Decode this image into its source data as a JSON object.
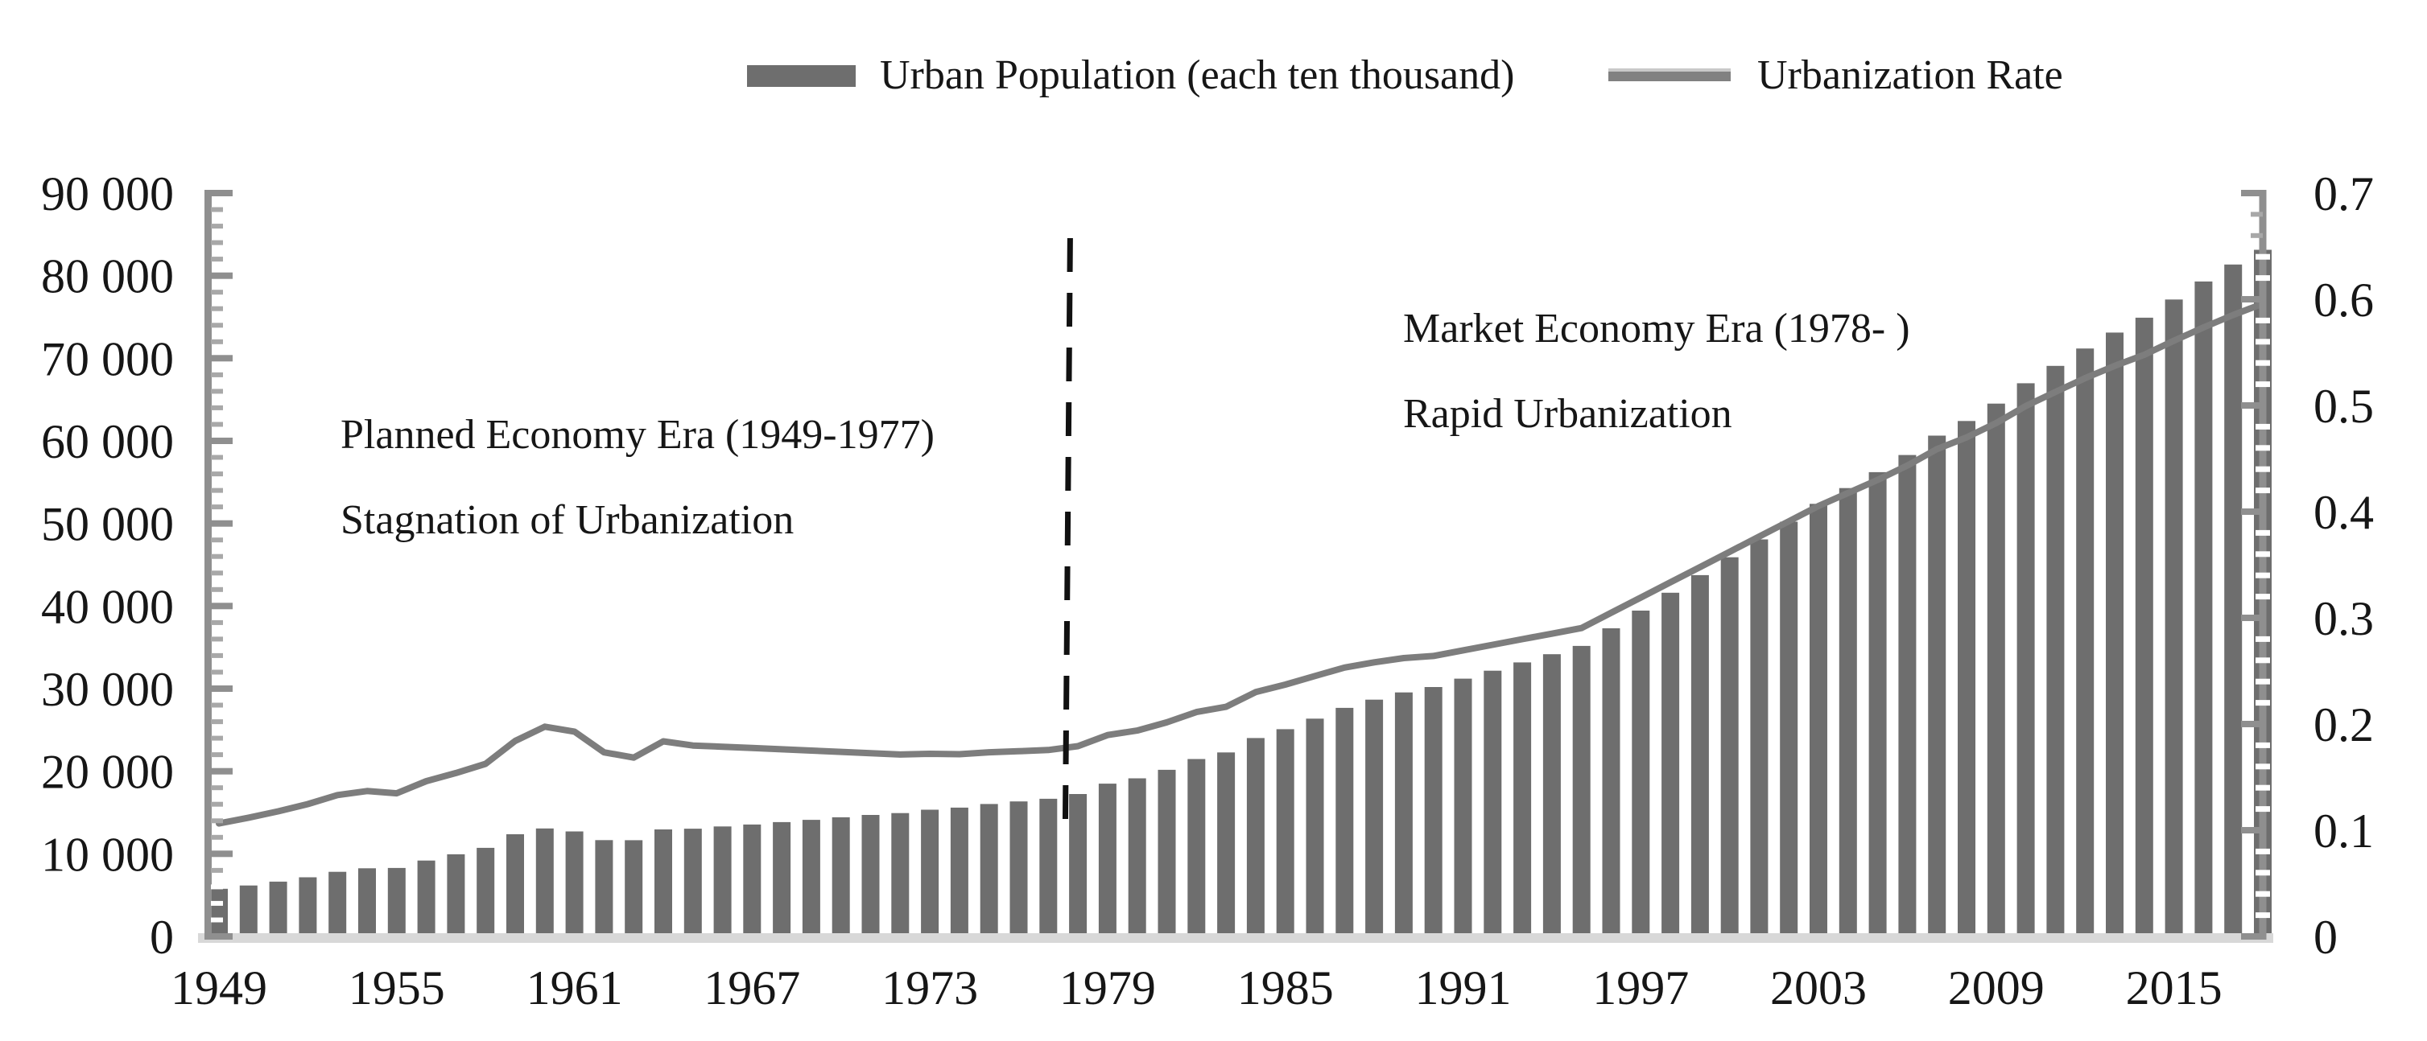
{
  "legend": {
    "bar_series_label": "Urban Population (each ten thousand)",
    "line_series_label": "Urbanization Rate"
  },
  "annotations": {
    "planned_era": {
      "line1": "Planned Economy Era (1949-1977)",
      "line2": "Stagnation of Urbanization"
    },
    "market_era": {
      "line1": "Market Economy Era (1978- )",
      "line2": "Rapid Urbanization"
    }
  },
  "colors": {
    "bar": "#6e6e6e",
    "line": "#7d7d7d",
    "legend_line_swatch": "#818181",
    "axis": "#8f8f8f",
    "tick_minor": "#a8a8a8",
    "baseline": "#d8d8d8",
    "divider": "#111111",
    "text": "#161616",
    "background": "#ffffff"
  },
  "chart_data": {
    "type": "combo-bar-line",
    "x_range": [
      1949,
      2018
    ],
    "x": [
      1949,
      1950,
      1951,
      1952,
      1953,
      1954,
      1955,
      1956,
      1957,
      1958,
      1959,
      1960,
      1961,
      1962,
      1963,
      1964,
      1965,
      1966,
      1967,
      1968,
      1969,
      1970,
      1971,
      1972,
      1973,
      1974,
      1975,
      1976,
      1977,
      1978,
      1979,
      1980,
      1981,
      1982,
      1983,
      1984,
      1985,
      1986,
      1987,
      1988,
      1989,
      1990,
      1991,
      1992,
      1993,
      1994,
      1995,
      1996,
      1997,
      1998,
      1999,
      2000,
      2001,
      2002,
      2003,
      2004,
      2005,
      2006,
      2007,
      2008,
      2009,
      2010,
      2011,
      2012,
      2013,
      2014,
      2015,
      2016,
      2017,
      2018
    ],
    "series": [
      {
        "name": "Urban Population (each ten thousand)",
        "render": "bar",
        "axis": "left",
        "values": [
          5765,
          6169,
          6632,
          7163,
          7826,
          8249,
          8285,
          9185,
          9949,
          10721,
          12371,
          13073,
          12707,
          11659,
          11646,
          12950,
          13045,
          13313,
          13548,
          13838,
          14117,
          14424,
          14711,
          14935,
          15345,
          15595,
          16030,
          16341,
          16669,
          17245,
          18495,
          19140,
          20171,
          21480,
          22274,
          24017,
          25094,
          26366,
          27674,
          28661,
          29540,
          30195,
          31203,
          32175,
          33173,
          34169,
          35174,
          37304,
          39449,
          41608,
          43748,
          45906,
          48064,
          50212,
          52376,
          54283,
          56212,
          58288,
          60633,
          62403,
          64512,
          66978,
          69079,
          71182,
          73111,
          74916,
          77116,
          79298,
          81347,
          83137
        ]
      },
      {
        "name": "Urbanization Rate",
        "render": "line",
        "axis": "right",
        "values": [
          0.1064,
          0.1118,
          0.1178,
          0.1246,
          0.1331,
          0.1369,
          0.1348,
          0.1462,
          0.1539,
          0.1625,
          0.1841,
          0.1975,
          0.1929,
          0.1733,
          0.1684,
          0.1837,
          0.1798,
          0.1786,
          0.1774,
          0.1762,
          0.175,
          0.1738,
          0.1726,
          0.1713,
          0.172,
          0.1716,
          0.1734,
          0.1744,
          0.1755,
          0.1792,
          0.1896,
          0.1939,
          0.2016,
          0.2113,
          0.2162,
          0.2301,
          0.2371,
          0.2452,
          0.2532,
          0.2581,
          0.2621,
          0.2641,
          0.2694,
          0.2746,
          0.2799,
          0.2851,
          0.2904,
          0.3048,
          0.3191,
          0.3335,
          0.3478,
          0.3622,
          0.3766,
          0.3909,
          0.4053,
          0.4176,
          0.4299,
          0.4434,
          0.4589,
          0.4699,
          0.4834,
          0.4995,
          0.5127,
          0.5257,
          0.5373,
          0.5477,
          0.561,
          0.5735,
          0.5852,
          0.5958
        ]
      }
    ],
    "left_axis": {
      "min": 0,
      "max": 90000,
      "major_step": 10000,
      "minor_step": 2000,
      "tick_labels": [
        "0",
        "10 000",
        "20 000",
        "30 000",
        "40 000",
        "50 000",
        "60 000",
        "70 000",
        "80 000",
        "90 000"
      ]
    },
    "right_axis": {
      "min": 0,
      "max": 0.7,
      "major_step": 0.1,
      "minor_step": 0.02,
      "tick_labels": [
        "0",
        "0.1",
        "0.2",
        "0.3",
        "0.4",
        "0.5",
        "0.6",
        "0.7"
      ]
    },
    "x_tick_labels": [
      "1949",
      "1955",
      "1961",
      "1967",
      "1973",
      "1979",
      "1985",
      "1991",
      "1997",
      "2003",
      "2009",
      "2015"
    ],
    "divider_year": 1977.6,
    "grid": false,
    "legend_position": "top-center"
  }
}
